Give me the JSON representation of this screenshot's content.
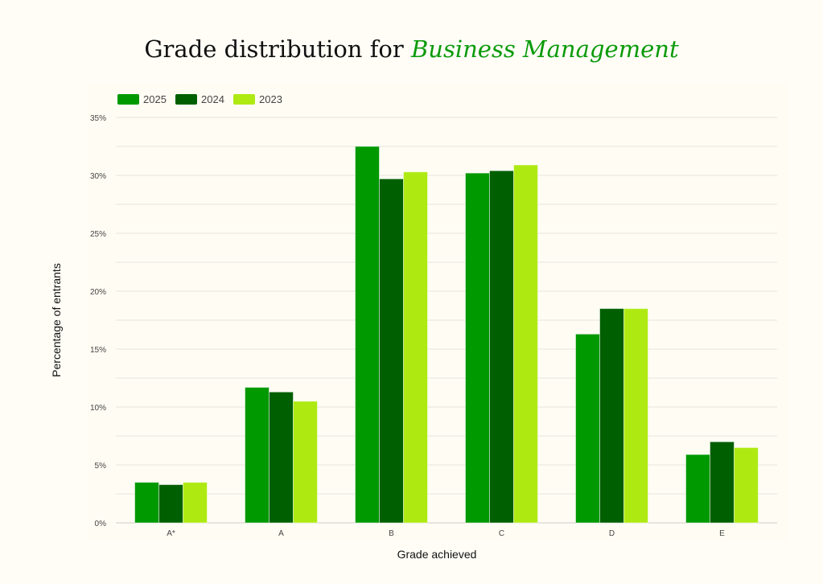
{
  "chart_data": {
    "type": "bar",
    "title": "Grade distribution for",
    "title_highlight": "Business Management",
    "xlabel": "Grade achieved",
    "ylabel": "Percentage of entrants",
    "categories": [
      "A*",
      "A",
      "B",
      "C",
      "D",
      "E"
    ],
    "ylim": [
      0,
      35
    ],
    "yticks": [
      0,
      5,
      10,
      15,
      20,
      25,
      30,
      35
    ],
    "ytick_labels": [
      "0%",
      "5%",
      "10%",
      "15%",
      "20%",
      "25%",
      "30%",
      "35%"
    ],
    "grid": true,
    "legend_position": "top-left",
    "series": [
      {
        "name": "2025",
        "color": "#009900",
        "values": [
          3.5,
          11.7,
          32.5,
          30.2,
          16.3,
          5.9
        ]
      },
      {
        "name": "2024",
        "color": "#005f00",
        "values": [
          3.3,
          11.3,
          29.7,
          30.4,
          18.5,
          7.0
        ]
      },
      {
        "name": "2023",
        "color": "#aeea12",
        "values": [
          3.5,
          10.5,
          30.3,
          30.9,
          18.5,
          6.5
        ]
      }
    ]
  }
}
